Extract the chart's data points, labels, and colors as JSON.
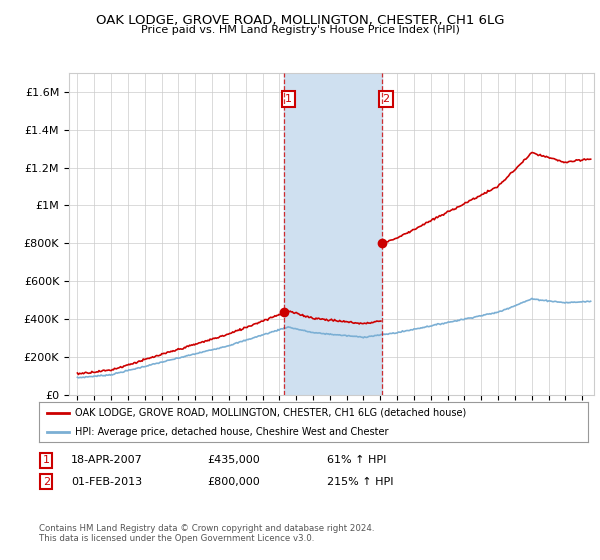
{
  "title": "OAK LODGE, GROVE ROAD, MOLLINGTON, CHESTER, CH1 6LG",
  "subtitle": "Price paid vs. HM Land Registry's House Price Index (HPI)",
  "ylim": [
    0,
    1700000
  ],
  "yticks": [
    0,
    200000,
    400000,
    600000,
    800000,
    1000000,
    1200000,
    1400000,
    1600000
  ],
  "ytick_labels": [
    "£0",
    "£200K",
    "£400K",
    "£600K",
    "£800K",
    "£1M",
    "£1.2M",
    "£1.4M",
    "£1.6M"
  ],
  "hpi_color": "#7bafd4",
  "price_color": "#cc0000",
  "sale1_date": 2007.3,
  "sale1_price": 435000,
  "sale2_date": 2013.08,
  "sale2_price": 800000,
  "legend_price_label": "OAK LODGE, GROVE ROAD, MOLLINGTON, CHESTER, CH1 6LG (detached house)",
  "legend_hpi_label": "HPI: Average price, detached house, Cheshire West and Chester",
  "table_row1": [
    "1",
    "18-APR-2007",
    "£435,000",
    "61% ↑ HPI"
  ],
  "table_row2": [
    "2",
    "01-FEB-2013",
    "£800,000",
    "215% ↑ HPI"
  ],
  "footer": "Contains HM Land Registry data © Crown copyright and database right 2024.\nThis data is licensed under the Open Government Licence v3.0.",
  "background_color": "#ffffff",
  "grid_color": "#cccccc",
  "shade_color": "#cfe0f0"
}
